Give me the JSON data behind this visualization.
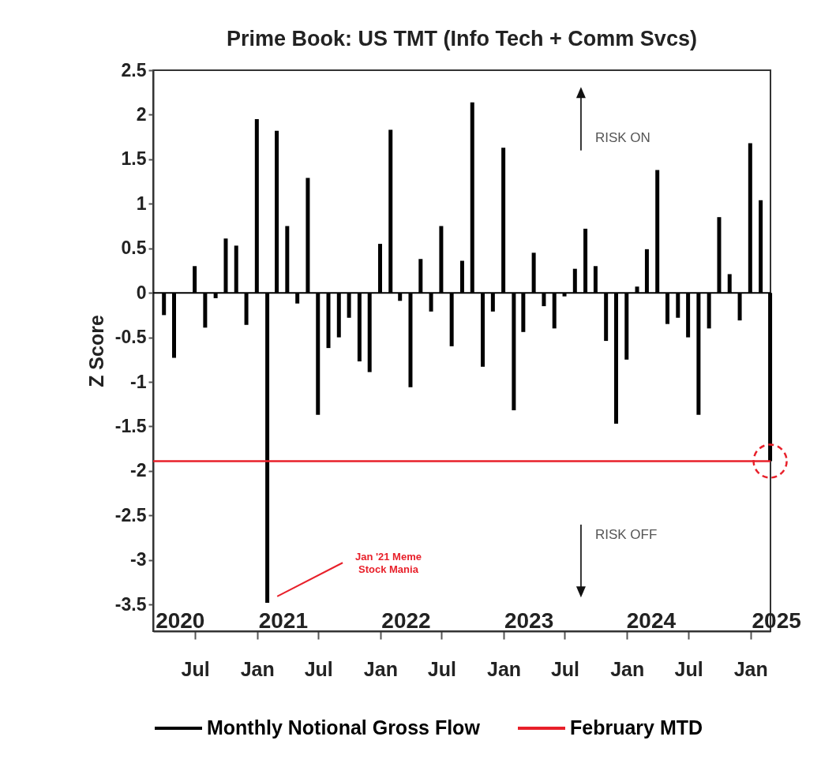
{
  "chart_data": {
    "type": "bar",
    "title": "Prime Book: US TMT (Info Tech + Comm Svcs)",
    "ylabel": "Z Score",
    "x": [
      "2020-03-31",
      "2020-04-30",
      "2020-05-31",
      "2020-06-30",
      "2020-07-31",
      "2020-08-31",
      "2020-09-30",
      "2020-10-31",
      "2020-11-30",
      "2020-12-31",
      "2021-01-31",
      "2021-02-28",
      "2021-03-31",
      "2021-04-30",
      "2021-05-31",
      "2021-06-30",
      "2021-07-31",
      "2021-08-31",
      "2021-09-30",
      "2021-10-31",
      "2021-11-30",
      "2021-12-31",
      "2022-01-31",
      "2022-02-28",
      "2022-03-31",
      "2022-04-30",
      "2022-05-31",
      "2022-06-30",
      "2022-07-31",
      "2022-08-31",
      "2022-09-30",
      "2022-10-31",
      "2022-11-30",
      "2022-12-31",
      "2023-01-31",
      "2023-02-28",
      "2023-03-31",
      "2023-04-30",
      "2023-05-31",
      "2023-06-30",
      "2023-07-31",
      "2023-08-31",
      "2023-09-30",
      "2023-10-31",
      "2023-11-30",
      "2023-12-31",
      "2024-01-31",
      "2024-02-29",
      "2024-03-31",
      "2024-04-30",
      "2024-05-31",
      "2024-06-30",
      "2024-07-31",
      "2024-08-31",
      "2024-09-30",
      "2024-10-31",
      "2024-11-30",
      "2024-12-31",
      "2025-01-31",
      "2025-02-28"
    ],
    "series": [
      {
        "name": "Monthly Notional Gross Flow",
        "color": "#000000",
        "values": [
          -0.25,
          -0.73,
          0,
          0.3,
          -0.39,
          -0.06,
          0.61,
          0.53,
          -0.36,
          1.95,
          -3.48,
          1.82,
          0.75,
          -0.12,
          1.29,
          -1.37,
          -0.62,
          -0.5,
          -0.28,
          -0.77,
          -0.89,
          0.55,
          1.83,
          -0.09,
          -1.06,
          0.38,
          -0.21,
          0.75,
          -0.6,
          0.36,
          2.14,
          -0.83,
          -0.21,
          1.63,
          -1.32,
          -0.44,
          0.45,
          -0.15,
          -0.4,
          -0.04,
          0.27,
          0.72,
          0.3,
          -0.54,
          -1.47,
          -0.75,
          0.07,
          0.49,
          1.38,
          -0.35,
          -0.28,
          -0.5,
          -1.37,
          -0.4,
          0.85,
          0.21,
          -0.31,
          1.68,
          1.04,
          -1.89
        ]
      }
    ],
    "xlim": [
      "2020-02-28",
      "2025-03-01"
    ],
    "xticks": [
      {
        "value": "2020-07-01",
        "label": "Jul"
      },
      {
        "value": "2021-01-01",
        "label": "Jan"
      },
      {
        "value": "2021-07-01",
        "label": "Jul"
      },
      {
        "value": "2022-01-01",
        "label": "Jan"
      },
      {
        "value": "2022-07-01",
        "label": "Jul"
      },
      {
        "value": "2023-01-01",
        "label": "Jan"
      },
      {
        "value": "2023-07-01",
        "label": "Jul"
      },
      {
        "value": "2024-01-01",
        "label": "Jan"
      },
      {
        "value": "2024-07-01",
        "label": "Jul"
      },
      {
        "value": "2025-01-01",
        "label": "Jan"
      }
    ],
    "ylim": [
      -3.8,
      2.5
    ],
    "yticks": [
      2.5,
      2,
      1.5,
      1,
      0.5,
      0,
      -0.5,
      -1,
      -1.5,
      -2,
      -2.5,
      -3,
      -3.5
    ],
    "ref_lines": [
      {
        "axis": "y",
        "value": 0,
        "color": "#000000"
      },
      {
        "axis": "y",
        "value": -1.89,
        "label": "February MTD",
        "color": "#e8202a"
      }
    ],
    "annotations": [
      "RISK ON",
      "RISK OFF",
      "Jan '21 Meme Stock Mania",
      "2020",
      "2021",
      "2022",
      "2023",
      "2024",
      "2025"
    ],
    "grid": false,
    "legend": "bottom"
  }
}
